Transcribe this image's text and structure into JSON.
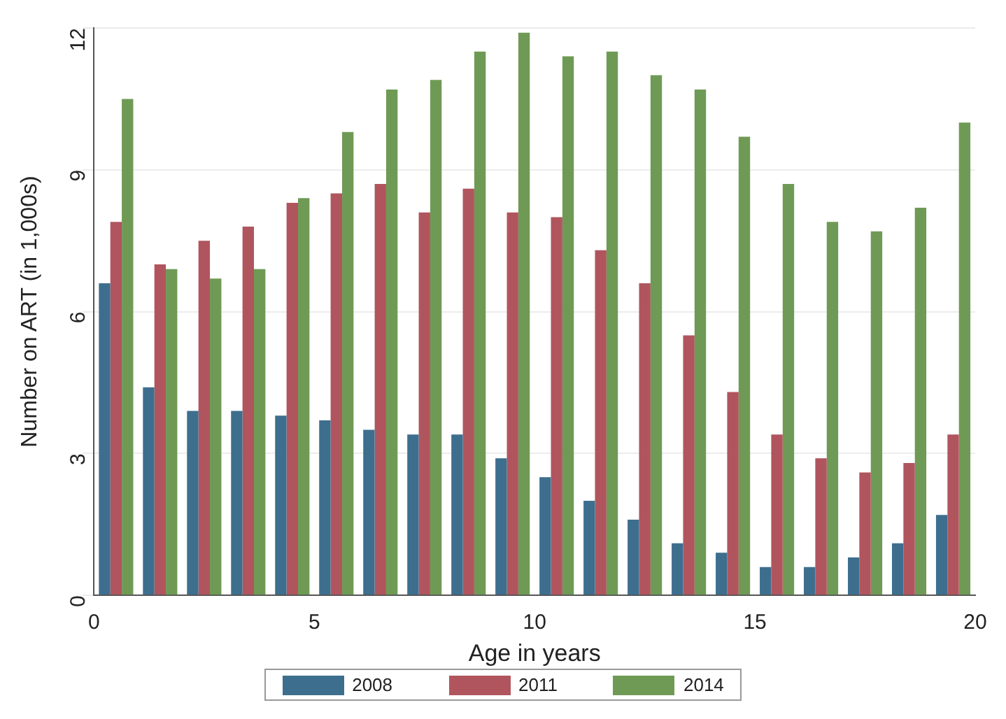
{
  "chart_data": {
    "type": "bar",
    "xlabel": "Age in years",
    "ylabel": "Number on ART (in 1,000s)",
    "x": [
      0.5,
      1.5,
      2.5,
      3.5,
      4.5,
      5.5,
      6.5,
      7.5,
      8.5,
      9.5,
      10.5,
      11.5,
      12.5,
      13.5,
      14.5,
      15.5,
      16.5,
      17.5,
      18.5,
      19.5
    ],
    "series": [
      {
        "name": "2008",
        "color": "#3e6e8e",
        "values": [
          6.6,
          4.4,
          3.9,
          3.9,
          3.8,
          3.7,
          3.5,
          3.4,
          3.4,
          2.9,
          2.5,
          2.0,
          1.6,
          1.1,
          0.9,
          0.6,
          0.6,
          0.8,
          1.1,
          1.7
        ]
      },
      {
        "name": "2011",
        "color": "#b0555e",
        "values": [
          7.9,
          7.0,
          7.5,
          7.8,
          8.3,
          8.5,
          8.7,
          8.1,
          8.6,
          8.1,
          8.0,
          7.3,
          6.6,
          5.5,
          4.3,
          3.4,
          2.9,
          2.6,
          2.8,
          3.4
        ]
      },
      {
        "name": "2014",
        "color": "#6f9a55",
        "values": [
          10.5,
          6.9,
          6.7,
          6.9,
          8.4,
          9.8,
          10.7,
          10.9,
          11.5,
          11.9,
          11.4,
          11.5,
          11.0,
          10.7,
          9.7,
          8.7,
          7.9,
          7.7,
          8.2,
          10.0
        ]
      }
    ],
    "xlim": [
      0,
      20
    ],
    "xticks": [
      0,
      5,
      10,
      15,
      20
    ],
    "ylim": [
      0,
      12
    ],
    "yticks": [
      0,
      3,
      6,
      9,
      12
    ],
    "grid": "y",
    "legend": "bottom"
  }
}
